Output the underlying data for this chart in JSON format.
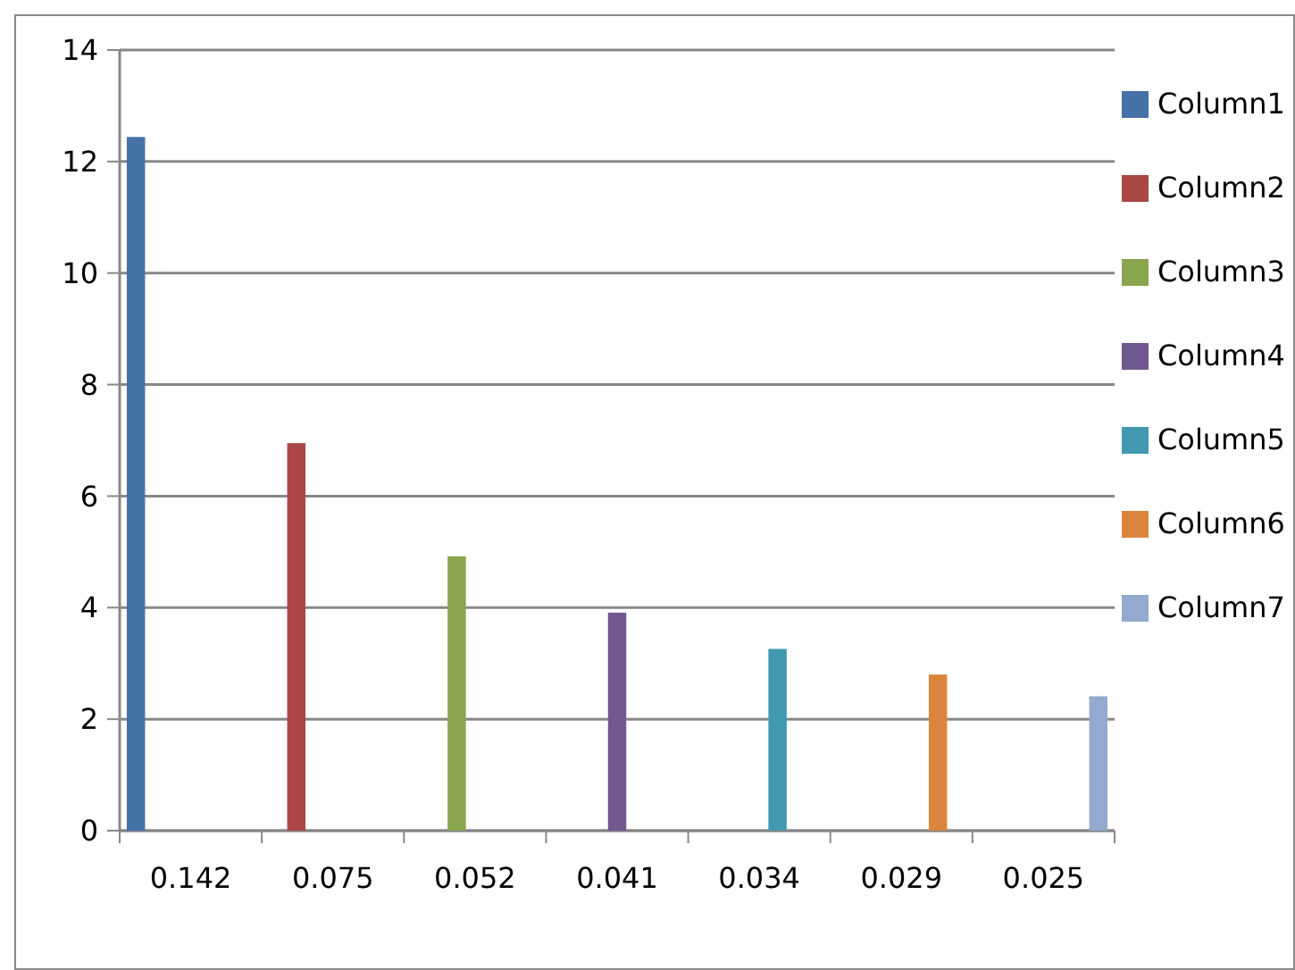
{
  "chart_data": {
    "type": "bar",
    "categories": [
      "0.142",
      "0.075",
      "0.052",
      "0.041",
      "0.034",
      "0.029",
      "0.025"
    ],
    "series": [
      {
        "name": "Column1",
        "color": "#4572a7",
        "values": [
          12.44,
          null,
          null,
          null,
          null,
          null,
          null
        ]
      },
      {
        "name": "Column2",
        "color": "#aa4643",
        "values": [
          null,
          6.95,
          null,
          null,
          null,
          null,
          null
        ]
      },
      {
        "name": "Column3",
        "color": "#89a54e",
        "values": [
          null,
          null,
          4.92,
          null,
          null,
          null,
          null
        ]
      },
      {
        "name": "Column4",
        "color": "#71588f",
        "values": [
          null,
          null,
          null,
          3.91,
          null,
          null,
          null
        ]
      },
      {
        "name": "Column5",
        "color": "#4198af",
        "values": [
          null,
          null,
          null,
          null,
          3.26,
          null,
          null
        ]
      },
      {
        "name": "Column6",
        "color": "#db843d",
        "values": [
          null,
          null,
          null,
          null,
          null,
          2.8,
          null
        ]
      },
      {
        "name": "Column7",
        "color": "#93a9cf",
        "values": [
          null,
          null,
          null,
          null,
          null,
          null,
          2.41
        ]
      }
    ],
    "ylim": [
      0,
      14
    ],
    "yticks": [
      0,
      2,
      4,
      6,
      8,
      10,
      12,
      14
    ],
    "grid": "y",
    "legend": "right"
  }
}
